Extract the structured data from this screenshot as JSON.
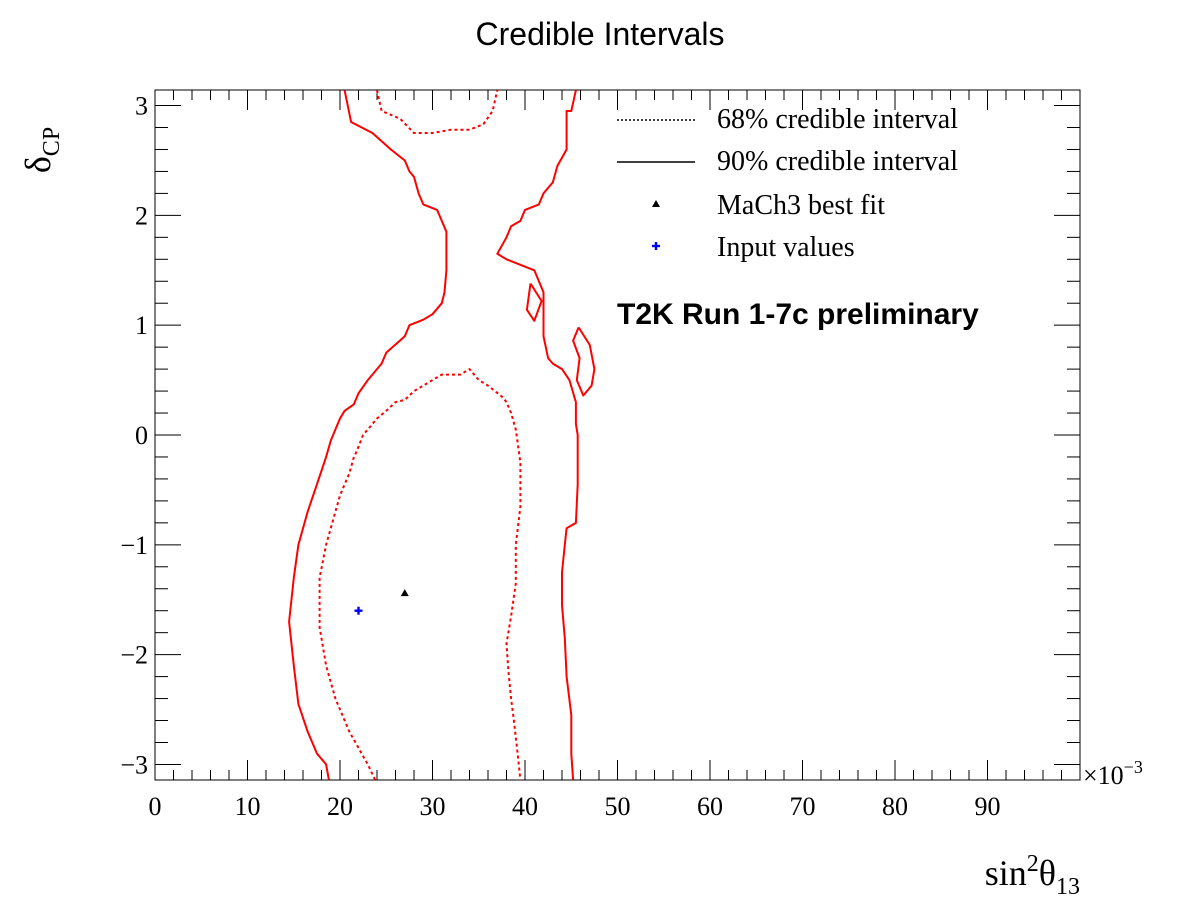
{
  "chart_data": {
    "type": "line",
    "title": "Credible Intervals",
    "xlabel": {
      "base": "sin",
      "sup": "2",
      "main": "θ",
      "sub": "13"
    },
    "ylabel": {
      "main": "δ",
      "sub": "CP"
    },
    "x_multiplier": {
      "prefix": "×10",
      "sup": "−3"
    },
    "xlim": [
      0,
      100
    ],
    "ylim": [
      -3.1416,
      3.1416
    ],
    "x_ticks": [
      0,
      10,
      20,
      30,
      40,
      50,
      60,
      70,
      80,
      90
    ],
    "x_tick_labels": [
      "0",
      "10",
      "20",
      "30",
      "40",
      "50",
      "60",
      "70",
      "80",
      "90"
    ],
    "y_ticks": [
      -3,
      -2,
      -1,
      0,
      1,
      2,
      3
    ],
    "y_tick_labels": [
      "−3",
      "−2",
      "−1",
      "0",
      "1",
      "2",
      "3"
    ],
    "grid": false,
    "legend_position": "top-right",
    "legend": [
      {
        "label": "68% credible interval",
        "style": "dotted-line"
      },
      {
        "label": "90% credible interval",
        "style": "solid-line"
      },
      {
        "label": "MaCh3 best fit",
        "style": "triangle-marker"
      },
      {
        "label": "Input values",
        "style": "cross-marker"
      }
    ],
    "annotation": "T2K Run 1-7c preliminary",
    "colors": {
      "contour": "#ff0000",
      "best_fit": "#000000",
      "input": "#0000ff"
    },
    "series": [
      {
        "name": "90% credible interval",
        "style": "solid",
        "segments": [
          [
            [
              20.5,
              3.14
            ],
            [
              21.2,
              2.85
            ],
            [
              23.5,
              2.75
            ],
            [
              25.5,
              2.6
            ],
            [
              27,
              2.5
            ],
            [
              27.5,
              2.4
            ],
            [
              28,
              2.35
            ],
            [
              28.5,
              2.2
            ],
            [
              29,
              2.1
            ],
            [
              30.5,
              2.05
            ],
            [
              31,
              1.95
            ],
            [
              31.5,
              1.85
            ],
            [
              31.5,
              1.5
            ],
            [
              31.3,
              1.3
            ],
            [
              31,
              1.2
            ],
            [
              30,
              1.1
            ],
            [
              29,
              1.05
            ],
            [
              27.5,
              1.0
            ],
            [
              27,
              0.9
            ],
            [
              25,
              0.75
            ],
            [
              24.5,
              0.65
            ],
            [
              23,
              0.5
            ],
            [
              22,
              0.38
            ],
            [
              21.5,
              0.28
            ],
            [
              20.5,
              0.22
            ],
            [
              20,
              0.15
            ],
            [
              19,
              -0.05
            ],
            [
              18.5,
              -0.2
            ],
            [
              17.5,
              -0.45
            ],
            [
              16.5,
              -0.7
            ],
            [
              15.5,
              -1.0
            ],
            [
              15,
              -1.3
            ],
            [
              14.5,
              -1.7
            ],
            [
              15,
              -2.1
            ],
            [
              15.5,
              -2.45
            ],
            [
              16.5,
              -2.7
            ],
            [
              17,
              -2.8
            ],
            [
              17.5,
              -2.9
            ],
            [
              18.5,
              -3.0
            ],
            [
              18.8,
              -3.14
            ]
          ],
          [
            [
              45.5,
              3.14
            ],
            [
              45,
              2.95
            ],
            [
              44.5,
              2.95
            ],
            [
              44.5,
              2.6
            ],
            [
              43.5,
              2.45
            ],
            [
              43,
              2.3
            ],
            [
              42.5,
              2.25
            ],
            [
              42,
              2.2
            ],
            [
              41.5,
              2.1
            ],
            [
              40,
              2.05
            ],
            [
              39.5,
              1.95
            ],
            [
              38.5,
              1.9
            ],
            [
              38,
              1.8
            ],
            [
              37,
              1.65
            ],
            [
              38,
              1.6
            ],
            [
              39.5,
              1.55
            ],
            [
              41,
              1.5
            ],
            [
              42,
              1.3
            ],
            [
              42,
              0.9
            ],
            [
              42.5,
              0.7
            ],
            [
              43,
              0.65
            ],
            [
              44,
              0.6
            ],
            [
              44.8,
              0.5
            ],
            [
              45.5,
              0.3
            ],
            [
              45.5,
              0.1
            ],
            [
              45.7,
              0.0
            ],
            [
              45.7,
              -0.45
            ],
            [
              45.5,
              -0.8
            ],
            [
              44.5,
              -0.85
            ],
            [
              44.3,
              -1.0
            ],
            [
              44,
              -1.25
            ],
            [
              44,
              -1.55
            ],
            [
              44.3,
              -1.85
            ],
            [
              44.5,
              -2.2
            ],
            [
              45,
              -2.55
            ],
            [
              45,
              -2.9
            ],
            [
              45.2,
              -3.14
            ]
          ],
          [
            [
              40.6,
              1.38
            ],
            [
              41.8,
              1.22
            ],
            [
              41.0,
              1.04
            ],
            [
              40.2,
              1.14
            ],
            [
              40.6,
              1.38
            ]
          ],
          [
            [
              45.8,
              0.98
            ],
            [
              47.0,
              0.82
            ],
            [
              47.5,
              0.6
            ],
            [
              47.2,
              0.45
            ],
            [
              46.3,
              0.36
            ],
            [
              45.6,
              0.5
            ],
            [
              45.9,
              0.7
            ],
            [
              45.2,
              0.86
            ],
            [
              45.8,
              0.98
            ]
          ]
        ]
      },
      {
        "name": "68% credible interval",
        "style": "dotted",
        "segments": [
          [
            [
              24,
              3.14
            ],
            [
              24.5,
              2.95
            ],
            [
              26.5,
              2.88
            ],
            [
              28,
              2.75
            ],
            [
              30,
              2.75
            ],
            [
              32,
              2.78
            ],
            [
              34,
              2.78
            ],
            [
              35.5,
              2.83
            ],
            [
              36.5,
              2.95
            ],
            [
              37,
              3.14
            ]
          ],
          [
            [
              23.8,
              -3.14
            ],
            [
              23,
              -3.0
            ],
            [
              22,
              -2.85
            ],
            [
              21,
              -2.7
            ],
            [
              19.5,
              -2.4
            ],
            [
              18.5,
              -2.1
            ],
            [
              17.8,
              -1.75
            ],
            [
              17.8,
              -1.3
            ],
            [
              18.5,
              -1.0
            ],
            [
              20,
              -0.55
            ],
            [
              20.5,
              -0.45
            ],
            [
              21,
              -0.35
            ],
            [
              21.5,
              -0.2
            ],
            [
              21.8,
              -0.15
            ],
            [
              22.5,
              0.0
            ],
            [
              24,
              0.15
            ],
            [
              25,
              0.22
            ],
            [
              26,
              0.3
            ],
            [
              27,
              0.32
            ],
            [
              28,
              0.4
            ],
            [
              29,
              0.45
            ],
            [
              30,
              0.5
            ],
            [
              31,
              0.55
            ],
            [
              33,
              0.55
            ],
            [
              34,
              0.6
            ],
            [
              35,
              0.5
            ],
            [
              36,
              0.45
            ],
            [
              37.5,
              0.35
            ],
            [
              38,
              0.3
            ],
            [
              38.5,
              0.2
            ],
            [
              39,
              0.05
            ],
            [
              39.5,
              -0.25
            ],
            [
              39.5,
              -0.65
            ],
            [
              39,
              -1.0
            ],
            [
              39,
              -1.35
            ],
            [
              38.5,
              -1.65
            ],
            [
              38,
              -1.9
            ],
            [
              38.2,
              -2.15
            ],
            [
              38.5,
              -2.4
            ],
            [
              38.8,
              -2.6
            ],
            [
              39.2,
              -2.9
            ],
            [
              39.5,
              -3.14
            ]
          ]
        ]
      }
    ],
    "points": [
      {
        "name": "MaCh3 best fit",
        "x": 27.0,
        "y": -1.44,
        "marker": "triangle",
        "color": "#000000"
      },
      {
        "name": "Input values",
        "x": 22.0,
        "y": -1.6,
        "marker": "cross",
        "color": "#0000ff"
      }
    ]
  }
}
